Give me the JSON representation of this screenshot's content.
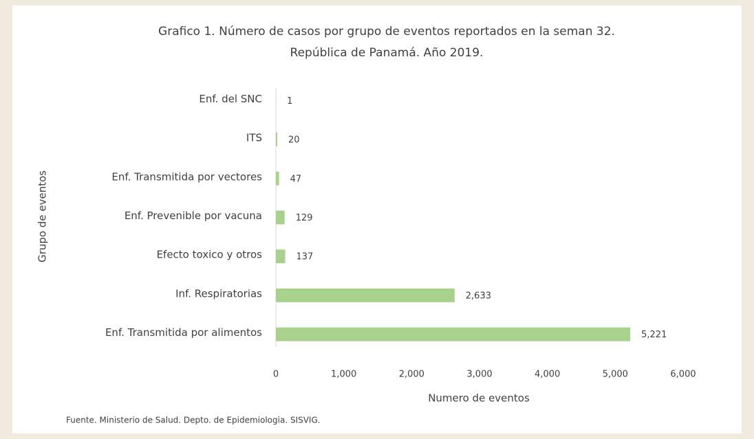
{
  "chart_data": {
    "type": "barh",
    "title": "Grafico 1. Número  de casos por grupo de eventos reportados  en la seman 32.",
    "subtitle": "República de Panamá. Año 2019.",
    "y_label": "Grupo de eventos",
    "x_label": "Numero de eventos",
    "note": "Fuente.  Ministerio de Salud. Depto. de Epidemiologia. SISVIG.",
    "categories": [
      "Enf. del SNC",
      "ITS",
      "Enf. Transmitida por vectores",
      "Enf. Prevenible por vacuna",
      "Efecto toxico y otros",
      "Inf. Respiratorias",
      "Enf. Transmitida por alimentos"
    ],
    "values": [
      1,
      20,
      47,
      129,
      137,
      2633,
      5221
    ],
    "value_labels": [
      "1",
      "20",
      "47",
      "129",
      "137",
      "2,633",
      "5,221"
    ],
    "color": "#a9d18e",
    "xlim": [
      0,
      6000
    ],
    "xticks": [
      0,
      {
        "value": 1000,
        "label": "1,000"
      },
      {
        "value": 2000,
        "label": "2,000"
      },
      {
        "value": 3000,
        "label": "3,000"
      },
      {
        "value": 4000,
        "label": "4,000"
      },
      {
        "value": 5000,
        "label": "5,000"
      },
      {
        "value": 6000,
        "label": "6,000"
      }
    ],
    "grid": false
  }
}
